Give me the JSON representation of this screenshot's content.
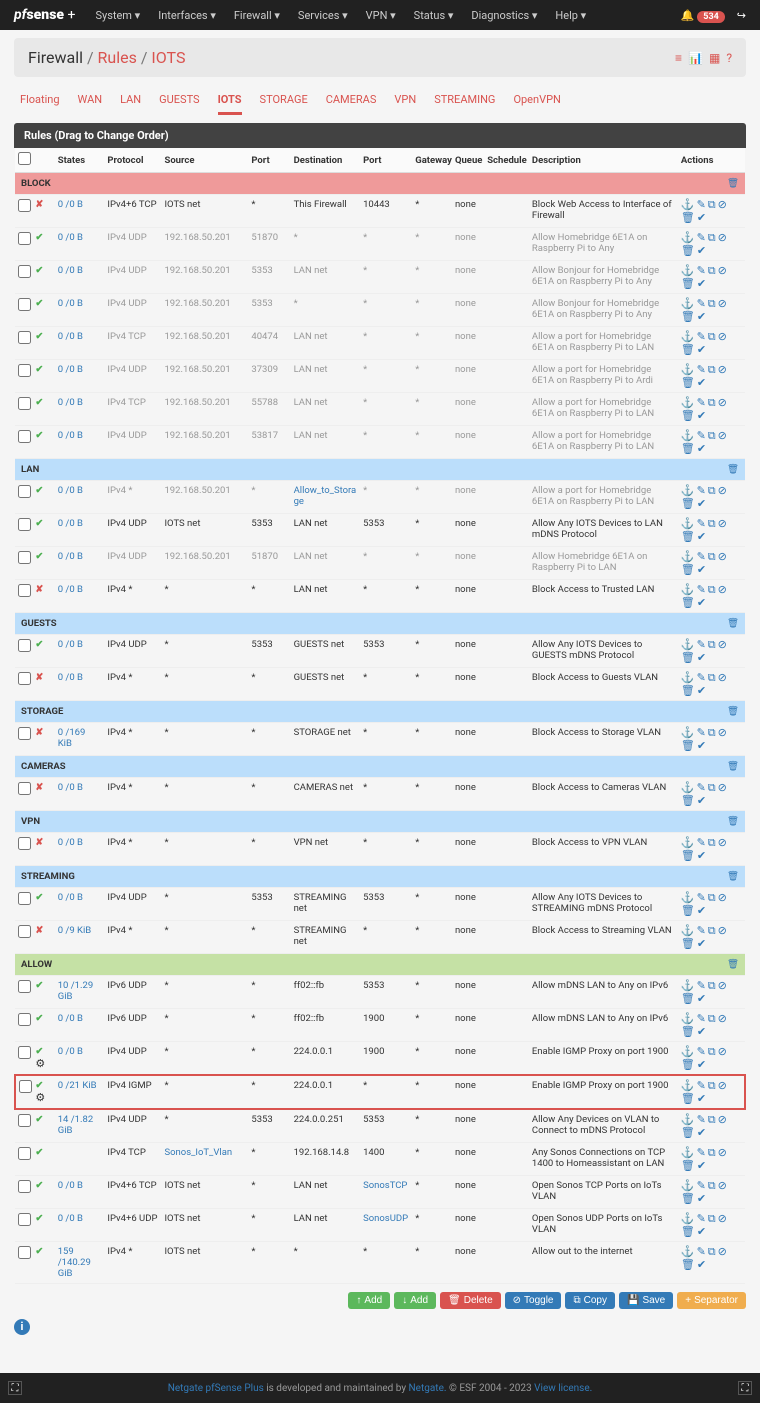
{
  "nav": {
    "brand": "pfsense",
    "brandPlus": "+",
    "items": [
      "System ▾",
      "Interfaces ▾",
      "Firewall ▾",
      "Services ▾",
      "VPN ▾",
      "Status ▾",
      "Diagnostics ▾",
      "Help ▾"
    ],
    "badge": "534"
  },
  "bc": {
    "a": "Firewall",
    "b": "Rules",
    "c": "IOTS"
  },
  "tabs": [
    "Floating",
    "WAN",
    "LAN",
    "GUESTS",
    "IOTS",
    "STORAGE",
    "CAMERAS",
    "VPN",
    "STREAMING",
    "OpenVPN"
  ],
  "activeTab": 4,
  "panelTitle": "Rules (Drag to Change Order)",
  "cols": [
    "",
    "",
    "States",
    "Protocol",
    "Source",
    "Port",
    "Destination",
    "Port",
    "Gateway",
    "Queue",
    "Schedule",
    "Description",
    "Actions"
  ],
  "groups": [
    {
      "label": "BLOCK",
      "cls": "block",
      "rows": [
        {
          "st": "x",
          "states": "0 /0 B",
          "proto": "IPv4+6 TCP",
          "src": "IOTS net",
          "sp": "*",
          "dst": "This Firewall",
          "dp": "10443",
          "gw": "*",
          "q": "none",
          "desc": "Block Web Access to Interface of Firewall"
        },
        {
          "st": "v",
          "states": "0 /0 B",
          "proto": "IPv4 UDP",
          "src": "192.168.50.201",
          "sp": "51870",
          "dst": "*",
          "dp": "*",
          "gw": "*",
          "q": "none",
          "desc": "Allow Homebridge 6E1A on Raspberry Pi to Any",
          "dis": true
        },
        {
          "st": "v",
          "states": "0 /0 B",
          "proto": "IPv4 UDP",
          "src": "192.168.50.201",
          "sp": "5353",
          "dst": "LAN net",
          "dp": "*",
          "gw": "*",
          "q": "none",
          "desc": "Allow Bonjour for Homebridge 6E1A on Raspberry Pi to Any",
          "dis": true
        },
        {
          "st": "v",
          "states": "0 /0 B",
          "proto": "IPv4 UDP",
          "src": "192.168.50.201",
          "sp": "5353",
          "dst": "*",
          "dp": "*",
          "gw": "*",
          "q": "none",
          "desc": "Allow Bonjour for Homebridge 6E1A on Raspberry Pi to Any",
          "dis": true
        },
        {
          "st": "v",
          "states": "0 /0 B",
          "proto": "IPv4 TCP",
          "src": "192.168.50.201",
          "sp": "40474",
          "dst": "LAN net",
          "dp": "*",
          "gw": "*",
          "q": "none",
          "desc": "Allow a port for Homebridge 6E1A on Raspberry Pi to LAN",
          "dis": true
        },
        {
          "st": "v",
          "states": "0 /0 B",
          "proto": "IPv4 UDP",
          "src": "192.168.50.201",
          "sp": "37309",
          "dst": "LAN net",
          "dp": "*",
          "gw": "*",
          "q": "none",
          "desc": "Allow a port for Homebridge 6E1A on Raspberry Pi to Ardi",
          "dis": true
        },
        {
          "st": "v",
          "states": "0 /0 B",
          "proto": "IPv4 TCP",
          "src": "192.168.50.201",
          "sp": "55788",
          "dst": "LAN net",
          "dp": "*",
          "gw": "*",
          "q": "none",
          "desc": "Allow a port for Homebridge 6E1A on Raspberry Pi to LAN",
          "dis": true
        },
        {
          "st": "v",
          "states": "0 /0 B",
          "proto": "IPv4 UDP",
          "src": "192.168.50.201",
          "sp": "53817",
          "dst": "LAN net",
          "dp": "*",
          "gw": "*",
          "q": "none",
          "desc": "Allow a port for Homebridge 6E1A on Raspberry Pi to LAN",
          "dis": true
        }
      ]
    },
    {
      "label": "LAN",
      "cls": "",
      "rows": [
        {
          "st": "v",
          "states": "0 /0 B",
          "proto": "IPv4 *",
          "src": "192.168.50.201",
          "sp": "*",
          "dst": "Allow_to_Storage",
          "dstLink": true,
          "dp": "*",
          "gw": "*",
          "q": "none",
          "desc": "Allow a port for Homebridge 6E1A on Raspberry Pi to LAN",
          "dis": true
        },
        {
          "st": "v",
          "states": "0 /0 B",
          "proto": "IPv4 UDP",
          "src": "IOTS net",
          "sp": "5353",
          "dst": "LAN net",
          "dp": "5353",
          "gw": "*",
          "q": "none",
          "desc": "Allow Any IOTS Devices to LAN mDNS Protocol"
        },
        {
          "st": "v",
          "states": "0 /0 B",
          "proto": "IPv4 UDP",
          "src": "192.168.50.201",
          "sp": "51870",
          "dst": "LAN net",
          "dp": "*",
          "gw": "*",
          "q": "none",
          "desc": "Allow Homebridge 6E1A on Raspberry Pi to LAN",
          "dis": true
        },
        {
          "st": "x",
          "states": "0 /0 B",
          "proto": "IPv4 *",
          "src": "*",
          "sp": "*",
          "dst": "LAN net",
          "dp": "*",
          "gw": "*",
          "q": "none",
          "desc": "Block Access to Trusted LAN"
        }
      ]
    },
    {
      "label": "GUESTS",
      "cls": "",
      "rows": [
        {
          "st": "v",
          "states": "0 /0 B",
          "proto": "IPv4 UDP",
          "src": "*",
          "sp": "5353",
          "dst": "GUESTS net",
          "dp": "5353",
          "gw": "*",
          "q": "none",
          "desc": "Allow Any IOTS Devices to GUESTS mDNS Protocol"
        },
        {
          "st": "x",
          "states": "0 /0 B",
          "proto": "IPv4 *",
          "src": "*",
          "sp": "*",
          "dst": "GUESTS net",
          "dp": "*",
          "gw": "*",
          "q": "none",
          "desc": "Block Access to Guests VLAN"
        }
      ]
    },
    {
      "label": "STORAGE",
      "cls": "",
      "rows": [
        {
          "st": "x",
          "states": "0 /169 KiB",
          "proto": "IPv4 *",
          "src": "*",
          "sp": "*",
          "dst": "STORAGE net",
          "dp": "*",
          "gw": "*",
          "q": "none",
          "desc": "Block Access to Storage VLAN"
        }
      ]
    },
    {
      "label": "CAMERAS",
      "cls": "",
      "rows": [
        {
          "st": "x",
          "states": "0 /0 B",
          "proto": "IPv4 *",
          "src": "*",
          "sp": "*",
          "dst": "CAMERAS net",
          "dp": "*",
          "gw": "*",
          "q": "none",
          "desc": "Block Access to Cameras VLAN"
        }
      ]
    },
    {
      "label": "VPN",
      "cls": "",
      "rows": [
        {
          "st": "x",
          "states": "0 /0 B",
          "proto": "IPv4 *",
          "src": "*",
          "sp": "*",
          "dst": "VPN net",
          "dp": "*",
          "gw": "*",
          "q": "none",
          "desc": "Block Access to VPN VLAN"
        }
      ]
    },
    {
      "label": "STREAMING",
      "cls": "",
      "rows": [
        {
          "st": "v",
          "states": "0 /0 B",
          "proto": "IPv4 UDP",
          "src": "*",
          "sp": "5353",
          "dst": "STREAMING net",
          "dp": "5353",
          "gw": "*",
          "q": "none",
          "desc": "Allow Any IOTS Devices to STREAMING mDNS Protocol"
        },
        {
          "st": "x",
          "states": "0 /9 KiB",
          "proto": "IPv4 *",
          "src": "*",
          "sp": "*",
          "dst": "STREAMING net",
          "dp": "*",
          "gw": "*",
          "q": "none",
          "desc": "Block Access to Streaming VLAN"
        }
      ]
    },
    {
      "label": "ALLOW",
      "cls": "allow",
      "rows": [
        {
          "st": "v",
          "states": "10 /1.29 GiB",
          "proto": "IPv6 UDP",
          "src": "*",
          "sp": "*",
          "dst": "ff02::fb",
          "dp": "5353",
          "gw": "*",
          "q": "none",
          "desc": "Allow mDNS LAN to Any on IPv6"
        },
        {
          "st": "v",
          "states": "0 /0 B",
          "proto": "IPv6 UDP",
          "src": "*",
          "sp": "*",
          "dst": "ff02::fb",
          "dp": "1900",
          "gw": "*",
          "q": "none",
          "desc": "Allow mDNS LAN to Any on IPv6"
        },
        {
          "st": "v",
          "gear": true,
          "states": "0 /0 B",
          "proto": "IPv4 UDP",
          "src": "*",
          "sp": "*",
          "dst": "224.0.0.1",
          "dp": "1900",
          "gw": "*",
          "q": "none",
          "desc": "Enable IGMP Proxy on port 1900"
        },
        {
          "st": "v",
          "gear": true,
          "hl": true,
          "states": "0 /21 KiB",
          "proto": "IPv4 IGMP",
          "src": "*",
          "sp": "*",
          "dst": "224.0.0.1",
          "dp": "*",
          "gw": "*",
          "q": "none",
          "desc": "Enable IGMP Proxy on port 1900"
        },
        {
          "st": "v",
          "states": "14 /1.82 GiB",
          "proto": "IPv4 UDP",
          "src": "*",
          "sp": "5353",
          "dst": "224.0.0.251",
          "dp": "5353",
          "gw": "*",
          "q": "none",
          "desc": "Allow Any Devices on VLAN to Connect to mDNS Protocol"
        },
        {
          "st": "v",
          "states": "",
          "proto": "IPv4 TCP",
          "src": "Sonos_IoT_Vlan",
          "srcLink": true,
          "sp": "*",
          "dst": "192.168.14.8",
          "dp": "1400",
          "gw": "*",
          "q": "none",
          "desc": "Any Sonos Connections on TCP 1400 to Homeassistant on LAN"
        },
        {
          "st": "v",
          "states": "0 /0 B",
          "proto": "IPv4+6 TCP",
          "src": "IOTS net",
          "sp": "*",
          "dst": "LAN net",
          "dp": "SonosTCP",
          "dpLink": true,
          "gw": "*",
          "q": "none",
          "desc": "Open Sonos TCP Ports on IoTs VLAN"
        },
        {
          "st": "v",
          "states": "0 /0 B",
          "proto": "IPv4+6 UDP",
          "src": "IOTS net",
          "sp": "*",
          "dst": "LAN net",
          "dp": "SonosUDP",
          "dpLink": true,
          "gw": "*",
          "q": "none",
          "desc": "Open Sonos UDP Ports on IoTs VLAN"
        },
        {
          "st": "v",
          "states": "159 /140.29 GiB",
          "proto": "IPv4 *",
          "src": "IOTS net",
          "sp": "*",
          "dst": "*",
          "dp": "*",
          "gw": "*",
          "q": "none",
          "desc": "Allow out to the internet"
        }
      ]
    }
  ],
  "btns": {
    "add": "Add",
    "del": "Delete",
    "tog": "Toggle",
    "copy": "Copy",
    "save": "Save",
    "sep": "Separator"
  },
  "footer": {
    "a": "Netgate pfSense Plus",
    "b": " is developed and maintained by ",
    "c": "Netgate.",
    "d": " © ESF 2004 - 2023 ",
    "e": "View license."
  }
}
